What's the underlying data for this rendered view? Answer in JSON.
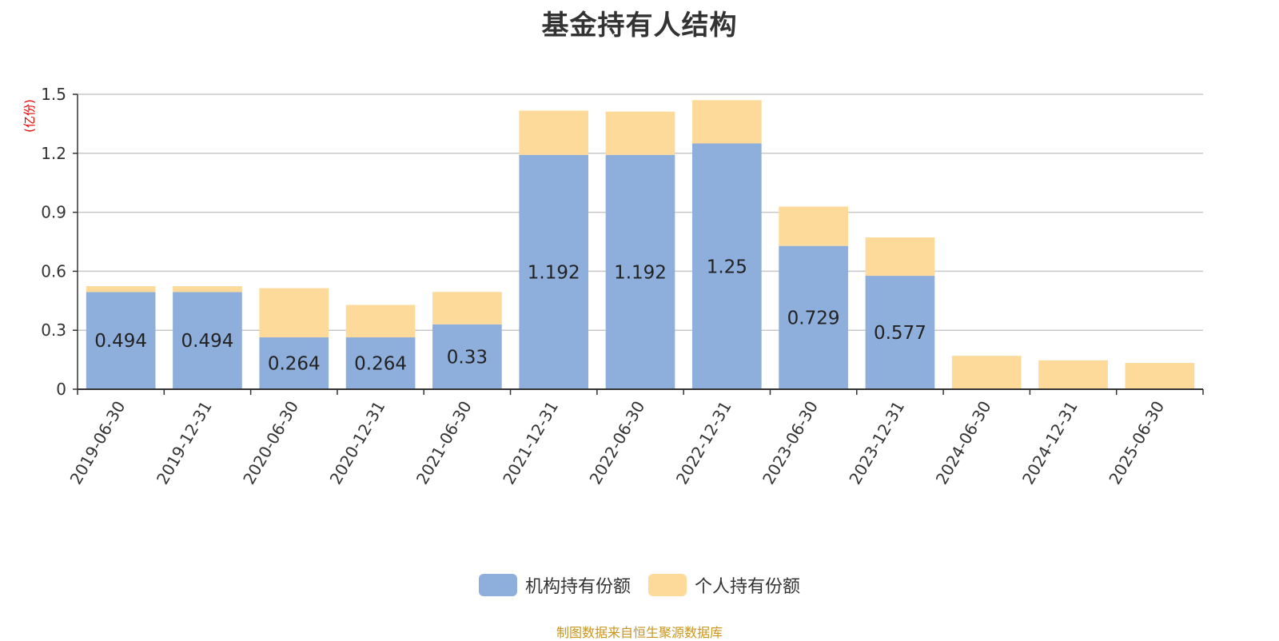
{
  "title": "基金持有人结构",
  "unit": "(亿份)",
  "source": "制图数据来自恒生聚源数据库",
  "chart_data": {
    "type": "bar",
    "stacked": true,
    "title": "基金持有人结构",
    "ylabel": "(亿份)",
    "ylim": [
      0,
      1.5
    ],
    "yticks": [
      0,
      0.3,
      0.6,
      0.9,
      1.2,
      1.5
    ],
    "ytick_labels": [
      "0",
      "0.3",
      "0.6",
      "0.9",
      "1.2",
      "1.5"
    ],
    "grid": true,
    "legend_position": "bottom-center",
    "categories": [
      "2019-06-30",
      "2019-12-31",
      "2020-06-30",
      "2020-12-31",
      "2021-06-30",
      "2021-12-31",
      "2022-06-30",
      "2022-12-31",
      "2023-06-30",
      "2023-12-31",
      "2024-06-30",
      "2024-12-31",
      "2025-06-30"
    ],
    "series": [
      {
        "name": "机构持有份额",
        "color": "#8eaedb",
        "values": [
          0.494,
          0.494,
          0.264,
          0.264,
          0.33,
          1.192,
          1.192,
          1.25,
          0.729,
          0.577,
          0,
          0,
          0
        ],
        "labels": [
          "0.494",
          "0.494",
          "0.264",
          "0.264",
          "0.33",
          "1.192",
          "1.192",
          "1.25",
          "0.729",
          "0.577",
          "",
          "",
          ""
        ]
      },
      {
        "name": "个人持有份额",
        "color": "#fdd99a",
        "values": [
          0.03,
          0.03,
          0.25,
          0.165,
          0.165,
          0.225,
          0.22,
          0.22,
          0.2,
          0.195,
          0.17,
          0.147,
          0.134
        ]
      }
    ]
  }
}
